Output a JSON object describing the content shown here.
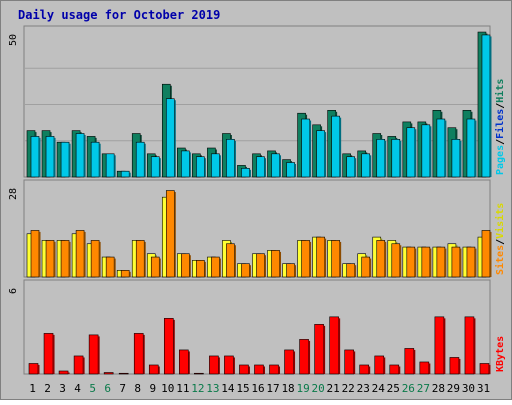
{
  "chart_data": {
    "type": "bar",
    "title": "Daily usage for October 2019",
    "categories": [
      "1",
      "2",
      "3",
      "4",
      "5",
      "6",
      "7",
      "8",
      "9",
      "10",
      "11",
      "12",
      "13",
      "14",
      "15",
      "16",
      "17",
      "18",
      "19",
      "20",
      "21",
      "22",
      "23",
      "24",
      "25",
      "26",
      "27",
      "28",
      "29",
      "30",
      "31"
    ],
    "weekend_days": [
      "5",
      "6",
      "12",
      "13",
      "19",
      "20",
      "26",
      "27"
    ],
    "panels": [
      {
        "name": "pages_files_hits",
        "ymax": 50,
        "ymax_label": "50",
        "legend": [
          "Pages",
          "/",
          "Files",
          "/",
          "Hits"
        ],
        "series": [
          {
            "name": "Hits",
            "color": "#0f7f5f",
            "values": [
              16,
              16,
              12,
              16,
              14,
              8,
              2,
              15,
              8,
              32,
              10,
              8,
              10,
              15,
              4,
              8,
              9,
              6,
              22,
              18,
              23,
              8,
              9,
              15,
              14,
              19,
              19,
              23,
              17,
              23,
              50
            ]
          },
          {
            "name": "Files",
            "color": "#00c8e8",
            "values": [
              14,
              14,
              12,
              15,
              12,
              8,
              2,
              12,
              7,
              27,
              9,
              7,
              8,
              13,
              3,
              7,
              8,
              5,
              20,
              16,
              21,
              7,
              8,
              13,
              13,
              17,
              18,
              20,
              13,
              20,
              49
            ]
          }
        ]
      },
      {
        "name": "sites_visits",
        "ymax": 28,
        "ymax_label": "28",
        "legend": [
          "Sites",
          "/",
          "Visits"
        ],
        "series": [
          {
            "name": "Visits",
            "color": "#ffff33",
            "values": [
              13,
              11,
              11,
              13,
              10,
              6,
              2,
              11,
              7,
              24,
              7,
              5,
              6,
              11,
              4,
              7,
              8,
              4,
              11,
              12,
              11,
              4,
              7,
              12,
              11,
              9,
              9,
              9,
              10,
              9,
              12
            ]
          },
          {
            "name": "Sites",
            "color": "#ff8800",
            "values": [
              14,
              11,
              11,
              14,
              11,
              6,
              2,
              11,
              6,
              26,
              7,
              5,
              6,
              10,
              4,
              7,
              8,
              4,
              11,
              12,
              11,
              4,
              6,
              11,
              10,
              9,
              9,
              9,
              9,
              9,
              14
            ]
          }
        ]
      },
      {
        "name": "kbytes",
        "ymax": 6,
        "ymax_label": "6",
        "legend": [
          "KBytes"
        ],
        "series": [
          {
            "name": "KBytes",
            "color": "#ff0000",
            "values": [
              0.7,
              2.7,
              0.2,
              1.2,
              2.6,
              0.1,
              0.05,
              2.7,
              0.6,
              3.7,
              1.6,
              0.05,
              1.2,
              1.2,
              0.6,
              0.6,
              0.6,
              1.6,
              2.3,
              3.3,
              3.8,
              1.6,
              0.6,
              1.2,
              0.6,
              1.7,
              0.8,
              3.8,
              1.1,
              3.8,
              0.7
            ]
          }
        ]
      }
    ],
    "colors": {
      "background": "#c0c0c0",
      "border": "#808080",
      "title": "#0000aa",
      "grid": "#a0a0a0",
      "axis_text": "#000000",
      "weekend_text": "#0a7a4a",
      "legend_pages": "#00c8e8",
      "legend_files": "#0033cc",
      "legend_hits": "#0f7f5f",
      "legend_sites": "#ff8800",
      "legend_visits": "#d9d900",
      "legend_kbytes": "#ff0000",
      "legend_slash": "#000000"
    }
  }
}
